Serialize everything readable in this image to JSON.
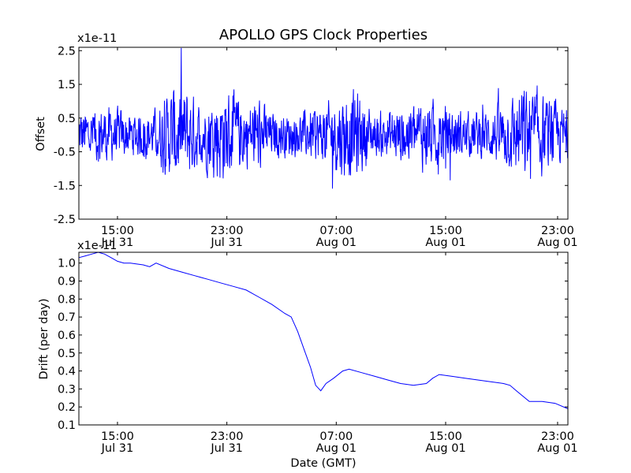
{
  "chart_data": [
    {
      "type": "line",
      "title": "APOLLO GPS Clock Properties",
      "ylabel": "Offset",
      "y_multiplier": "x1e-11",
      "ylim": [
        -2.5,
        2.6
      ],
      "xlim_hours": [
        0,
        38
      ],
      "yticks": [
        {
          "value": 2.5,
          "label": "2.5"
        },
        {
          "value": 1.5,
          "label": "1.5"
        },
        {
          "value": 0.5,
          "label": "0.5"
        },
        {
          "value": -0.5,
          "label": "-0.5"
        },
        {
          "value": -1.5,
          "label": "-1.5"
        },
        {
          "value": -2.5,
          "label": "-2.5"
        }
      ],
      "xticks": [
        {
          "hour": 3.0,
          "time": "15:00",
          "date": "Jul 31"
        },
        {
          "hour": 11.5,
          "time": "23:00",
          "date": "Jul 31"
        },
        {
          "hour": 20.0,
          "time": "07:00",
          "date": "Aug 01"
        },
        {
          "hour": 28.5,
          "time": "15:00",
          "date": "Aug 01"
        },
        {
          "hour": 37.2,
          "time": "23:00",
          "date": "Aug 01"
        }
      ],
      "series": [
        {
          "name": "offset",
          "color": "#0000ff",
          "noise_profile": {
            "hours": [
              0,
              2,
              4,
              6,
              7.5,
              8.5,
              9.5,
              11,
              13,
              14,
              15,
              17,
              19,
              20.5,
              21.5,
              23,
              25,
              26.5,
              28,
              30,
              32,
              33.5,
              35,
              36.5,
              38
            ],
            "amplitude": [
              0.7,
              0.8,
              0.6,
              0.7,
              1.4,
              1.3,
              0.8,
              1.4,
              0.9,
              1.0,
              0.6,
              0.6,
              0.8,
              1.2,
              1.3,
              0.6,
              0.8,
              1.0,
              0.9,
              0.6,
              0.7,
              1.0,
              1.4,
              1.0,
              0.7
            ]
          }
        }
      ]
    },
    {
      "type": "line",
      "xlabel": "Date (GMT)",
      "ylabel": "Drift (per day)",
      "y_multiplier": "x1e-11",
      "ylim": [
        0.1,
        1.06
      ],
      "xlim_hours": [
        0,
        38
      ],
      "yticks": [
        {
          "value": 1.0,
          "label": "1.0"
        },
        {
          "value": 0.9,
          "label": "0.9"
        },
        {
          "value": 0.8,
          "label": "0.8"
        },
        {
          "value": 0.7,
          "label": "0.7"
        },
        {
          "value": 0.6,
          "label": "0.6"
        },
        {
          "value": 0.5,
          "label": "0.5"
        },
        {
          "value": 0.4,
          "label": "0.4"
        },
        {
          "value": 0.3,
          "label": "0.3"
        },
        {
          "value": 0.2,
          "label": "0.2"
        },
        {
          "value": 0.1,
          "label": "0.1"
        }
      ],
      "xticks": [
        {
          "hour": 3.0,
          "time": "15:00",
          "date": "Jul 31"
        },
        {
          "hour": 11.5,
          "time": "23:00",
          "date": "Jul 31"
        },
        {
          "hour": 20.0,
          "time": "07:00",
          "date": "Aug 01"
        },
        {
          "hour": 28.5,
          "time": "15:00",
          "date": "Aug 01"
        },
        {
          "hour": 37.2,
          "time": "23:00",
          "date": "Aug 01"
        }
      ],
      "series": [
        {
          "name": "drift",
          "color": "#0000ff",
          "x": [
            0,
            0.5,
            1.0,
            1.5,
            2.0,
            2.5,
            3.0,
            3.5,
            4.0,
            5.0,
            5.5,
            6.0,
            7.0,
            8.0,
            9.0,
            10.0,
            11.0,
            12.0,
            13.0,
            14.0,
            15.0,
            16.0,
            16.5,
            17.0,
            17.5,
            18.0,
            18.4,
            18.8,
            19.2,
            19.8,
            20.5,
            21.0,
            22.0,
            23.0,
            24.0,
            25.0,
            26.0,
            27.0,
            27.5,
            28.0,
            29.0,
            30.0,
            31.0,
            32.0,
            33.0,
            33.5,
            34.0,
            35.0,
            36.0,
            37.0,
            38.0
          ],
          "y": [
            1.03,
            1.04,
            1.05,
            1.06,
            1.05,
            1.03,
            1.01,
            1.0,
            1.0,
            0.99,
            0.98,
            1.0,
            0.97,
            0.95,
            0.93,
            0.91,
            0.89,
            0.87,
            0.85,
            0.81,
            0.77,
            0.72,
            0.7,
            0.62,
            0.52,
            0.42,
            0.32,
            0.29,
            0.33,
            0.36,
            0.4,
            0.41,
            0.39,
            0.37,
            0.35,
            0.33,
            0.32,
            0.33,
            0.36,
            0.38,
            0.37,
            0.36,
            0.35,
            0.34,
            0.33,
            0.32,
            0.29,
            0.23,
            0.23,
            0.22,
            0.19
          ]
        }
      ]
    }
  ]
}
